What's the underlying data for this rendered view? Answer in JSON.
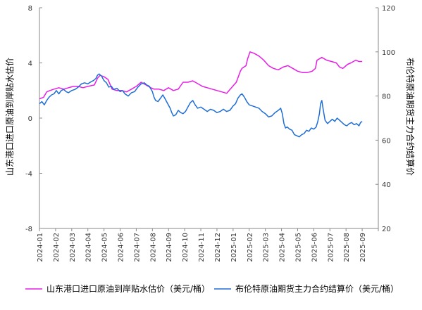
{
  "chart_data": {
    "type": "line",
    "x_categories": [
      "2024-01",
      "2024-02",
      "2024-03",
      "2024-04",
      "2024-05",
      "2024-06",
      "2024-07",
      "2024-08",
      "2024-09",
      "2024-10",
      "2024-11",
      "2024-12",
      "2025-01",
      "2025-02",
      "2025-03",
      "2025-04",
      "2025-05",
      "2025-06",
      "2025-07",
      "2025-08",
      "2025-09"
    ],
    "y_left": {
      "label": "山东港口进口原油到岸贴水估价",
      "ylim": [
        -8,
        8
      ],
      "ticks": [
        "-8",
        "-4",
        "0",
        "4",
        "8"
      ]
    },
    "y_right": {
      "label": "布伦特原油期货主力合约结算价",
      "ylim": [
        20,
        120
      ],
      "ticks": [
        "20",
        "40",
        "60",
        "80",
        "100",
        "120"
      ]
    },
    "grid": false,
    "legend_position": "bottom",
    "series": [
      {
        "name": "山东港口进口原油到岸贴水估价（美元/桶）",
        "axis": "left",
        "color": "#e61ee6",
        "points": [
          [
            0.0,
            1.4
          ],
          [
            0.25,
            1.5
          ],
          [
            0.45,
            1.9
          ],
          [
            0.65,
            2.0
          ],
          [
            0.9,
            2.1
          ],
          [
            1.2,
            2.2
          ],
          [
            1.5,
            2.1
          ],
          [
            1.8,
            2.2
          ],
          [
            2.1,
            2.3
          ],
          [
            2.4,
            2.3
          ],
          [
            2.7,
            2.2
          ],
          [
            3.0,
            2.3
          ],
          [
            3.4,
            2.4
          ],
          [
            3.6,
            2.9
          ],
          [
            3.75,
            3.1
          ],
          [
            4.0,
            3.0
          ],
          [
            4.25,
            2.8
          ],
          [
            4.5,
            2.1
          ],
          [
            4.8,
            2.0
          ],
          [
            5.1,
            2.0
          ],
          [
            5.4,
            1.9
          ],
          [
            5.7,
            2.1
          ],
          [
            6.0,
            2.3
          ],
          [
            6.3,
            2.6
          ],
          [
            6.6,
            2.4
          ],
          [
            6.9,
            2.2
          ],
          [
            7.1,
            2.1
          ],
          [
            7.4,
            2.1
          ],
          [
            7.7,
            2.0
          ],
          [
            8.0,
            2.2
          ],
          [
            8.3,
            2.0
          ],
          [
            8.6,
            2.1
          ],
          [
            8.9,
            2.6
          ],
          [
            9.2,
            2.6
          ],
          [
            9.5,
            2.7
          ],
          [
            9.8,
            2.5
          ],
          [
            10.1,
            2.3
          ],
          [
            10.4,
            2.2
          ],
          [
            10.7,
            2.1
          ],
          [
            11.0,
            2.0
          ],
          [
            11.3,
            1.9
          ],
          [
            11.6,
            1.8
          ],
          [
            11.9,
            2.2
          ],
          [
            12.2,
            2.6
          ],
          [
            12.45,
            3.4
          ],
          [
            12.55,
            3.6
          ],
          [
            12.8,
            3.8
          ],
          [
            12.9,
            4.3
          ],
          [
            13.05,
            4.8
          ],
          [
            13.3,
            4.7
          ],
          [
            13.6,
            4.5
          ],
          [
            13.9,
            4.2
          ],
          [
            14.2,
            3.8
          ],
          [
            14.5,
            3.6
          ],
          [
            14.8,
            3.5
          ],
          [
            15.1,
            3.7
          ],
          [
            15.4,
            3.8
          ],
          [
            15.7,
            3.6
          ],
          [
            16.0,
            3.4
          ],
          [
            16.3,
            3.3
          ],
          [
            16.6,
            3.3
          ],
          [
            16.9,
            3.4
          ],
          [
            17.1,
            3.6
          ],
          [
            17.2,
            4.2
          ],
          [
            17.5,
            4.4
          ],
          [
            17.8,
            4.2
          ],
          [
            18.1,
            4.1
          ],
          [
            18.4,
            4.0
          ],
          [
            18.6,
            3.7
          ],
          [
            18.8,
            3.6
          ],
          [
            19.1,
            3.9
          ],
          [
            19.3,
            4.0
          ],
          [
            19.6,
            4.2
          ],
          [
            19.8,
            4.1
          ],
          [
            20.0,
            4.1
          ]
        ]
      },
      {
        "name": "布伦特原油期货主力合约结算价（美元/桶）",
        "axis": "right",
        "color": "#1f6ed6",
        "points": [
          [
            0.0,
            76.5
          ],
          [
            0.15,
            77.5
          ],
          [
            0.3,
            76.0
          ],
          [
            0.45,
            78.0
          ],
          [
            0.6,
            79.5
          ],
          [
            0.75,
            80.5
          ],
          [
            0.9,
            81.0
          ],
          [
            1.05,
            82.5
          ],
          [
            1.2,
            81.0
          ],
          [
            1.35,
            82.5
          ],
          [
            1.5,
            83.0
          ],
          [
            1.65,
            82.0
          ],
          [
            1.8,
            81.5
          ],
          [
            2.0,
            82.5
          ],
          [
            2.2,
            83.0
          ],
          [
            2.4,
            84.0
          ],
          [
            2.6,
            85.5
          ],
          [
            2.8,
            86.0
          ],
          [
            3.0,
            85.5
          ],
          [
            3.2,
            86.5
          ],
          [
            3.35,
            87.0
          ],
          [
            3.5,
            88.0
          ],
          [
            3.6,
            89.5
          ],
          [
            3.7,
            90.0
          ],
          [
            3.85,
            89.0
          ],
          [
            4.0,
            87.0
          ],
          [
            4.15,
            86.0
          ],
          [
            4.3,
            84.0
          ],
          [
            4.45,
            84.5
          ],
          [
            4.6,
            83.0
          ],
          [
            4.8,
            83.5
          ],
          [
            5.0,
            82.0
          ],
          [
            5.15,
            82.5
          ],
          [
            5.3,
            81.0
          ],
          [
            5.5,
            80.0
          ],
          [
            5.7,
            81.5
          ],
          [
            5.9,
            82.0
          ],
          [
            6.1,
            84.0
          ],
          [
            6.3,
            85.5
          ],
          [
            6.5,
            86.0
          ],
          [
            6.65,
            85.0
          ],
          [
            6.8,
            84.5
          ],
          [
            7.0,
            82.0
          ],
          [
            7.1,
            79.5
          ],
          [
            7.2,
            78.0
          ],
          [
            7.35,
            77.5
          ],
          [
            7.5,
            79.0
          ],
          [
            7.65,
            80.5
          ],
          [
            7.8,
            78.5
          ],
          [
            7.95,
            76.5
          ],
          [
            8.1,
            74.5
          ],
          [
            8.2,
            72.5
          ],
          [
            8.3,
            71.0
          ],
          [
            8.45,
            71.5
          ],
          [
            8.6,
            73.5
          ],
          [
            8.75,
            72.5
          ],
          [
            8.9,
            72.0
          ],
          [
            9.05,
            73.0
          ],
          [
            9.2,
            75.0
          ],
          [
            9.35,
            77.0
          ],
          [
            9.5,
            78.0
          ],
          [
            9.65,
            76.0
          ],
          [
            9.8,
            74.5
          ],
          [
            10.0,
            75.0
          ],
          [
            10.2,
            74.0
          ],
          [
            10.4,
            73.0
          ],
          [
            10.6,
            74.0
          ],
          [
            10.8,
            73.5
          ],
          [
            11.0,
            72.5
          ],
          [
            11.2,
            73.0
          ],
          [
            11.4,
            74.0
          ],
          [
            11.6,
            73.0
          ],
          [
            11.8,
            73.5
          ],
          [
            12.0,
            75.5
          ],
          [
            12.15,
            76.5
          ],
          [
            12.3,
            79.0
          ],
          [
            12.45,
            80.5
          ],
          [
            12.55,
            81.0
          ],
          [
            12.7,
            79.5
          ],
          [
            12.85,
            77.5
          ],
          [
            13.0,
            76.0
          ],
          [
            13.2,
            75.5
          ],
          [
            13.4,
            75.0
          ],
          [
            13.6,
            74.5
          ],
          [
            13.8,
            73.0
          ],
          [
            14.0,
            72.0
          ],
          [
            14.2,
            70.5
          ],
          [
            14.4,
            71.0
          ],
          [
            14.6,
            72.5
          ],
          [
            14.8,
            73.5
          ],
          [
            14.95,
            74.5
          ],
          [
            15.05,
            72.0
          ],
          [
            15.15,
            67.5
          ],
          [
            15.25,
            65.5
          ],
          [
            15.35,
            66.0
          ],
          [
            15.5,
            65.0
          ],
          [
            15.65,
            64.5
          ],
          [
            15.8,
            62.5
          ],
          [
            15.95,
            62.0
          ],
          [
            16.1,
            61.5
          ],
          [
            16.25,
            62.5
          ],
          [
            16.4,
            63.0
          ],
          [
            16.55,
            64.5
          ],
          [
            16.7,
            64.0
          ],
          [
            16.85,
            65.5
          ],
          [
            17.0,
            65.0
          ],
          [
            17.15,
            66.0
          ],
          [
            17.25,
            68.5
          ],
          [
            17.35,
            72.0
          ],
          [
            17.42,
            76.5
          ],
          [
            17.5,
            78.0
          ],
          [
            17.58,
            74.0
          ],
          [
            17.7,
            69.0
          ],
          [
            17.85,
            67.5
          ],
          [
            18.0,
            68.5
          ],
          [
            18.15,
            69.5
          ],
          [
            18.3,
            68.5
          ],
          [
            18.45,
            70.0
          ],
          [
            18.6,
            69.0
          ],
          [
            18.75,
            68.0
          ],
          [
            18.9,
            67.0
          ],
          [
            19.05,
            66.5
          ],
          [
            19.2,
            67.5
          ],
          [
            19.35,
            68.0
          ],
          [
            19.5,
            67.0
          ],
          [
            19.65,
            67.5
          ],
          [
            19.8,
            66.5
          ],
          [
            19.9,
            68.0
          ],
          [
            20.0,
            68.5
          ]
        ]
      }
    ]
  }
}
